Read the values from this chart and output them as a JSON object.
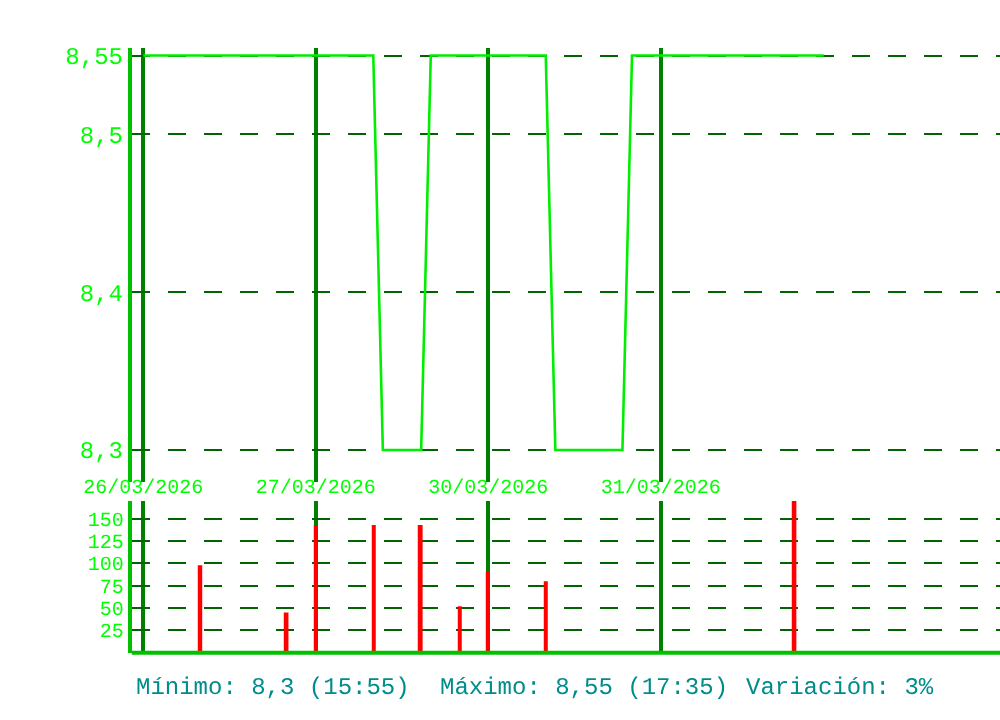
{
  "chart_data": [
    {
      "type": "line",
      "categories": [
        null,
        null,
        null,
        null,
        null,
        null,
        null,
        null,
        null,
        null,
        null,
        null,
        null,
        null,
        null,
        null,
        null,
        null,
        null,
        null,
        null,
        null,
        null,
        null,
        null,
        null,
        null,
        null,
        null,
        null,
        null,
        null,
        null,
        null,
        null,
        null,
        null,
        null,
        null,
        null,
        null,
        null,
        null,
        null,
        null,
        null,
        null,
        null,
        null,
        null,
        null,
        null,
        null,
        null,
        null,
        null,
        null,
        null,
        null,
        null,
        null,
        null,
        null,
        null,
        null,
        null,
        null,
        null,
        null,
        null,
        null,
        null
      ],
      "series": [
        {
          "color": "#00ee00",
          "values": [
            8.55,
            8.55,
            8.55,
            8.55,
            8.55,
            8.55,
            8.55,
            8.55,
            8.55,
            8.55,
            8.55,
            8.55,
            8.55,
            8.55,
            8.55,
            8.55,
            8.55,
            8.55,
            8.55,
            8.55,
            8.55,
            8.55,
            8.55,
            8.55,
            8.55,
            8.3,
            8.3,
            8.3,
            8.3,
            8.3,
            8.55,
            8.55,
            8.55,
            8.55,
            8.55,
            8.55,
            8.55,
            8.55,
            8.55,
            8.55,
            8.55,
            8.55,
            8.55,
            8.3,
            8.3,
            8.3,
            8.3,
            8.3,
            8.3,
            8.3,
            8.3,
            8.55,
            8.55,
            8.55,
            8.55,
            8.55,
            8.55,
            8.55,
            8.55,
            8.55,
            8.55,
            8.55,
            8.55,
            8.55,
            8.55,
            8.55,
            8.55,
            8.55,
            8.55,
            8.55,
            8.55,
            8.55
          ]
        }
      ],
      "ylim": [
        8.28,
        8.555
      ],
      "yticks": [
        {
          "value": 8.3,
          "label": "8,3"
        },
        {
          "value": 8.4,
          "label": "8,4"
        },
        {
          "value": 8.5,
          "label": "8,5"
        },
        {
          "value": 8.55,
          "label": "8,55"
        }
      ],
      "grid": true,
      "marker": "none",
      "line_style": "solid"
    },
    {
      "type": "bar",
      "categories": [
        "26/03/2026",
        null,
        null,
        null,
        null,
        null,
        null,
        null,
        null,
        null,
        null,
        null,
        null,
        null,
        null,
        null,
        null,
        null,
        "27/03/2026",
        null,
        null,
        null,
        null,
        null,
        null,
        null,
        null,
        null,
        null,
        null,
        null,
        null,
        null,
        null,
        null,
        null,
        "30/03/2026",
        null,
        null,
        null,
        null,
        null,
        null,
        null,
        null,
        null,
        null,
        null,
        null,
        null,
        null,
        null,
        null,
        null,
        "31/03/2026",
        null,
        null,
        null,
        null,
        null,
        null,
        null,
        null,
        null,
        null,
        null,
        null,
        null,
        null,
        null,
        null,
        null
      ],
      "series": [
        {
          "color": "#ff0000",
          "values": [
            null,
            null,
            null,
            null,
            null,
            null,
            98,
            null,
            null,
            null,
            null,
            null,
            null,
            null,
            null,
            45,
            null,
            null,
            143,
            null,
            null,
            null,
            null,
            null,
            143,
            null,
            null,
            null,
            null,
            143,
            null,
            null,
            null,
            52,
            null,
            null,
            91,
            null,
            null,
            null,
            null,
            null,
            80,
            null,
            null,
            null,
            null,
            null,
            null,
            null,
            null,
            null,
            null,
            null,
            null,
            null,
            null,
            null,
            null,
            null,
            null,
            null,
            null,
            null,
            null,
            null,
            null,
            null,
            170,
            null,
            null,
            null
          ]
        }
      ],
      "ylim": [
        0,
        170
      ],
      "yticks": [
        25,
        50,
        75,
        100,
        125,
        150
      ],
      "grid": true,
      "annotations": [
        "Mínimo: 8,3 (15:55)",
        "Máximo: 8,55 (17:35)",
        "Variación: 3%"
      ]
    }
  ]
}
